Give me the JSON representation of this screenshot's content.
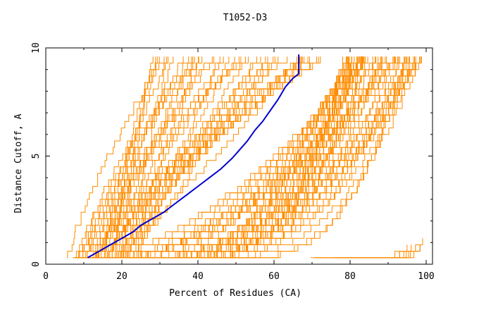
{
  "chart_data": {
    "type": "line",
    "title": "T1052-D3",
    "xlabel": "Percent of Residues (CA)",
    "ylabel": "Distance Cutoff, A",
    "xlim": [
      0,
      100
    ],
    "ylim": [
      0,
      10
    ],
    "xticks": [
      0,
      20,
      40,
      60,
      80,
      100
    ],
    "yticks": [
      0,
      5,
      10
    ],
    "grid": false,
    "legend": "none",
    "colors": {
      "models": "#ff8c00",
      "highlight": "#0000cd",
      "axes": "#000000"
    },
    "highlight_series": {
      "x": [
        11,
        14,
        17,
        20,
        23,
        25,
        28,
        31,
        34,
        37,
        40,
        43,
        46,
        49,
        51,
        53,
        55,
        57,
        59,
        61,
        63,
        65,
        66.5,
        66.5
      ],
      "y": [
        0.3,
        0.6,
        0.9,
        1.2,
        1.5,
        1.8,
        2.1,
        2.4,
        2.8,
        3.2,
        3.6,
        4.0,
        4.4,
        4.9,
        5.3,
        5.7,
        6.2,
        6.6,
        7.1,
        7.6,
        8.2,
        8.6,
        8.8,
        9.7
      ]
    },
    "model_groups": [
      {
        "name": "",
        "count": 45,
        "start_x": [
          6,
          24
        ],
        "end_x": [
          28,
          75
        ],
        "shape": "steep"
      },
      {
        "name": "",
        "count": 60,
        "start_x": [
          8,
          40
        ],
        "end_x": [
          78,
          100
        ],
        "shape": "concave"
      },
      {
        "name": "",
        "count": 8,
        "start_x": [
          70,
          80
        ],
        "end_x": [
          96,
          100
        ],
        "shape": "flat"
      }
    ]
  }
}
